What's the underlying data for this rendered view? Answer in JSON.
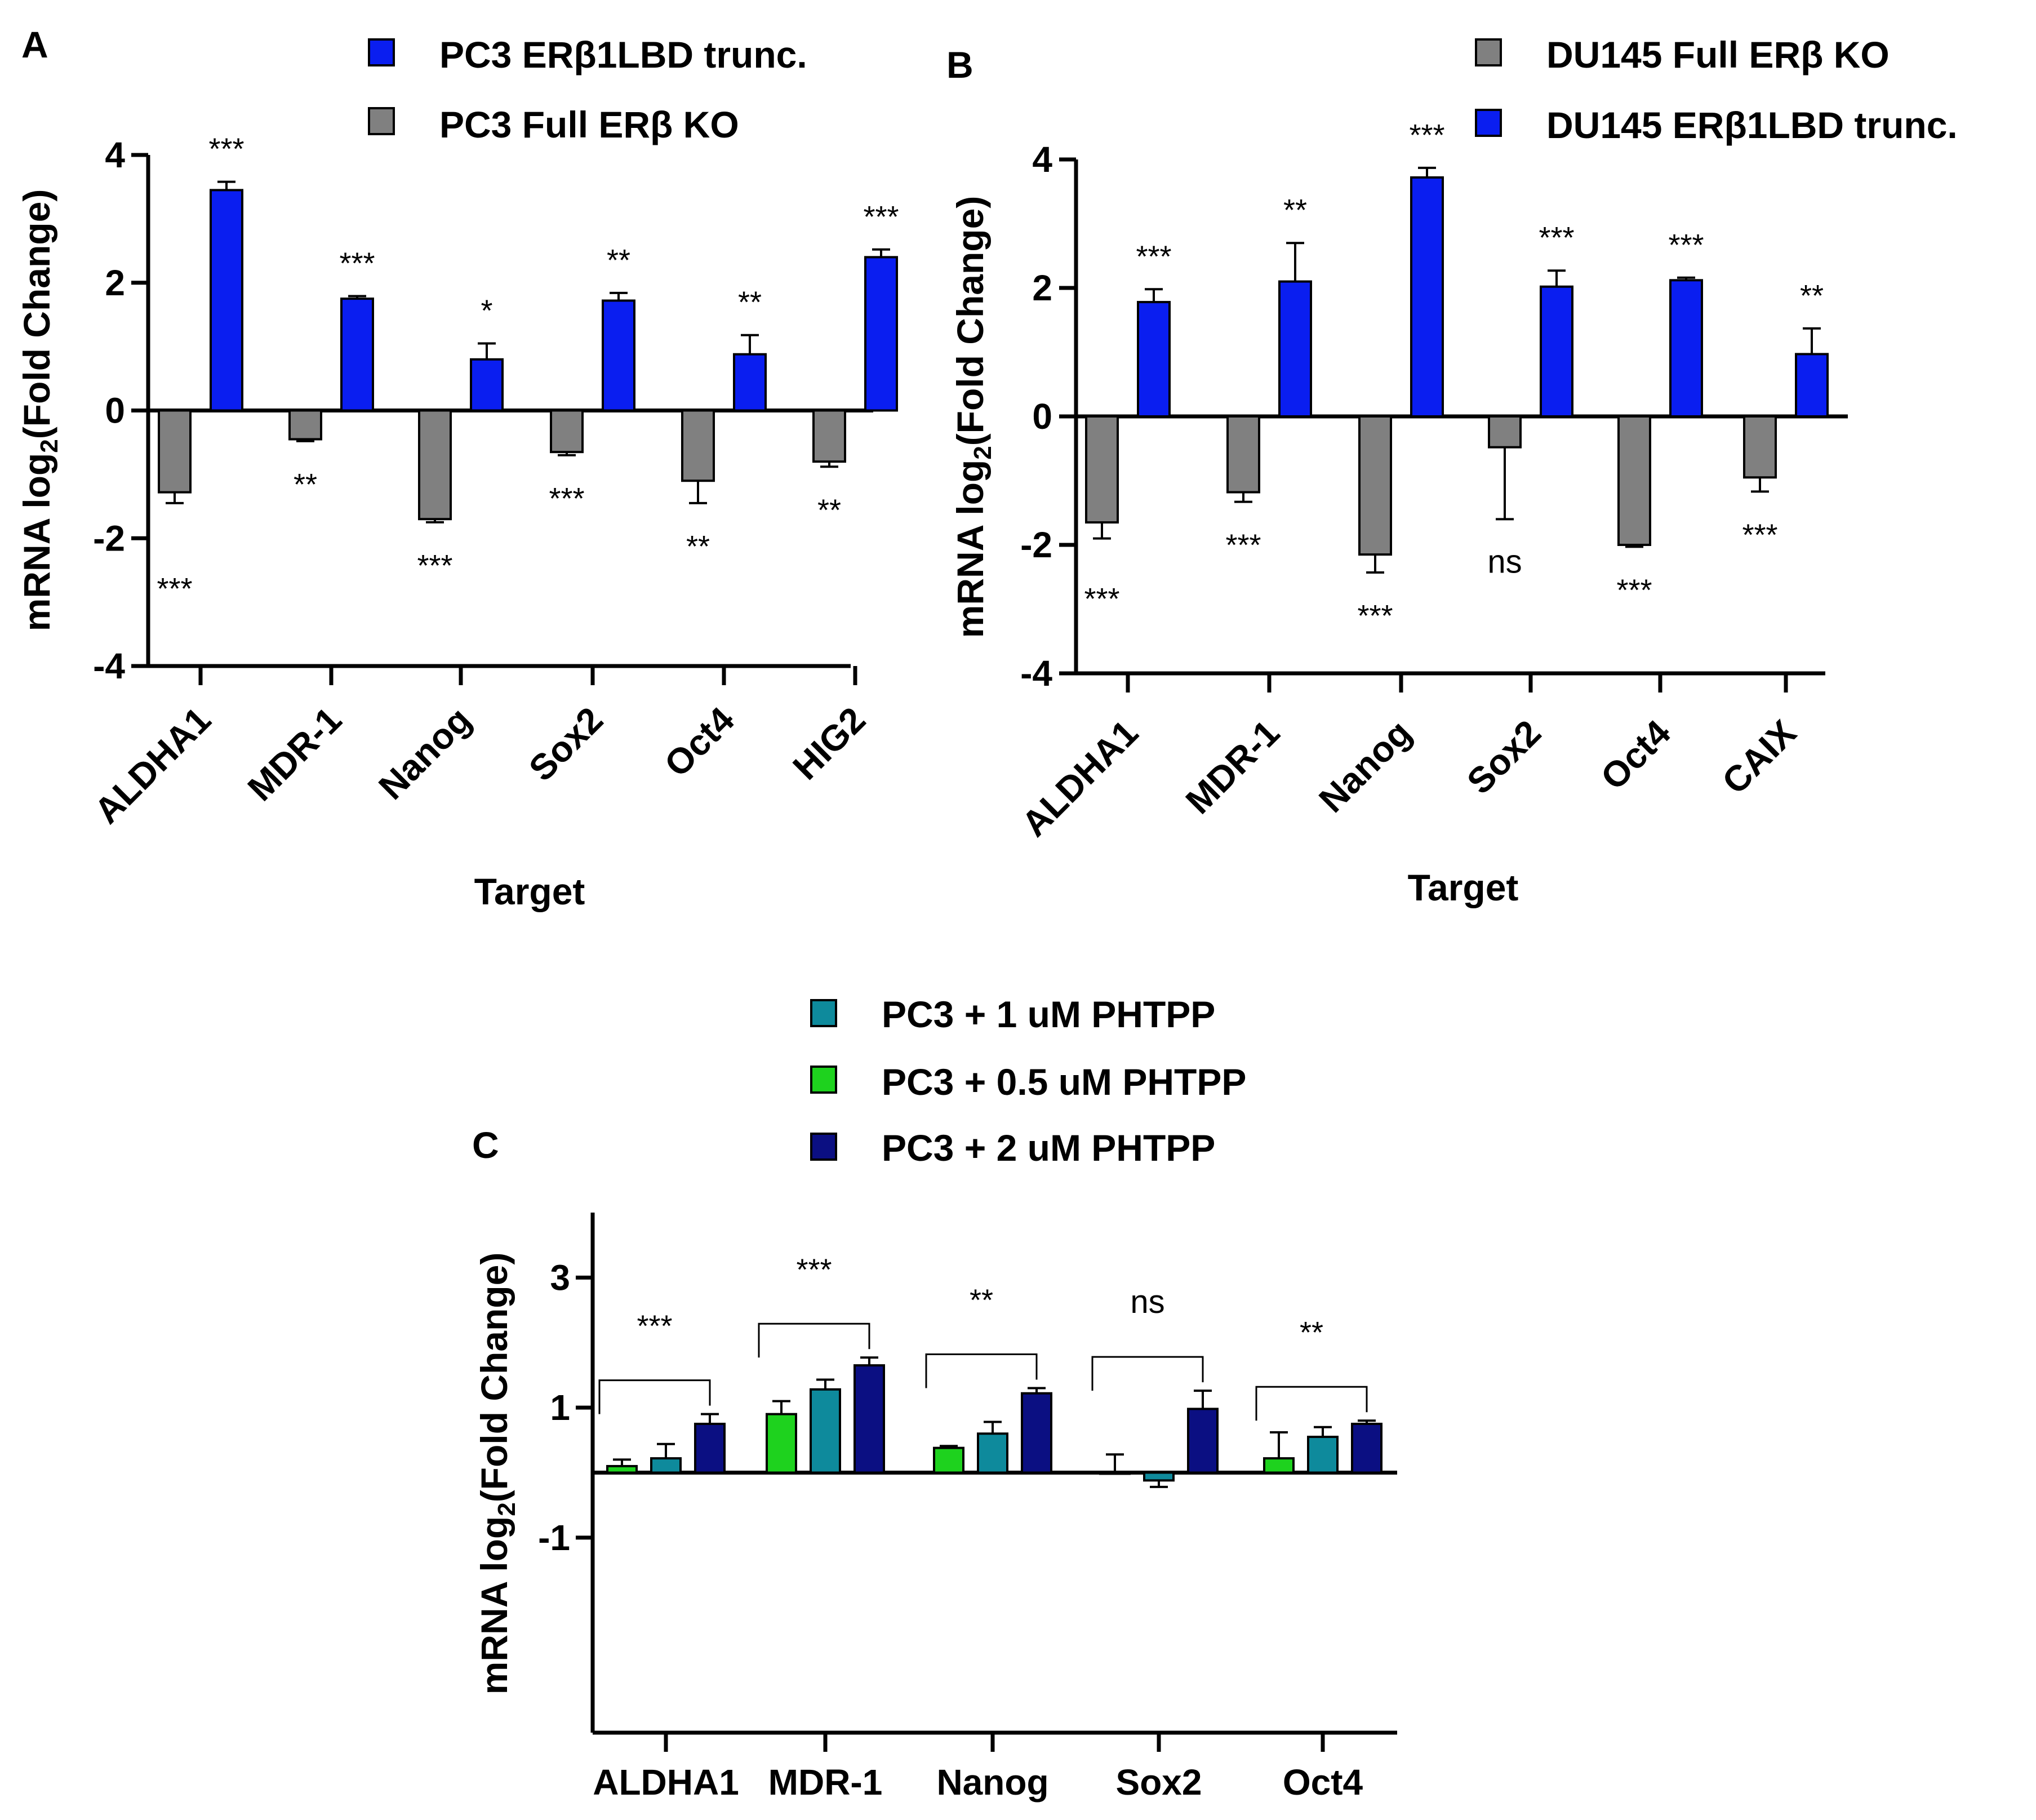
{
  "chart_data": [
    {
      "panel": "A",
      "type": "bar",
      "xlabel": "Target",
      "ylabel": "mRNA log2(Fold Change)",
      "ylim": [
        -4,
        4
      ],
      "yticks": [
        4,
        2,
        0,
        -2,
        -4
      ],
      "categories": [
        "ALDHA1",
        "MDR-1",
        "Nanog",
        "Sox2",
        "Oct4",
        "HIG2"
      ],
      "legend_position": "top",
      "series": [
        {
          "name": "PC3 ERβ1LBD trunc.",
          "color": "#0a1ef0",
          "values": [
            3.45,
            1.75,
            0.8,
            1.72,
            0.88,
            2.4
          ],
          "errors": [
            0.13,
            0.04,
            0.25,
            0.12,
            0.3,
            0.12
          ],
          "significance": [
            "***",
            "***",
            "*",
            "**",
            "**",
            "***"
          ]
        },
        {
          "name": "PC3 Full ERβ  KO",
          "color": "#808080",
          "values": [
            -1.28,
            -0.45,
            -1.7,
            -0.65,
            -1.1,
            -0.8
          ],
          "errors": [
            0.17,
            0.03,
            0.05,
            0.05,
            0.35,
            0.08
          ],
          "significance": [
            "***",
            "**",
            "***",
            "***",
            "**",
            "**"
          ]
        }
      ]
    },
    {
      "panel": "B",
      "type": "bar",
      "xlabel": "Target",
      "ylabel": "mRNA log2(Fold Change)",
      "ylim": [
        -4,
        4
      ],
      "yticks": [
        4,
        2,
        0,
        -2,
        -4
      ],
      "categories": [
        "ALDHA1",
        "MDR-1",
        "Nanog",
        "Sox2",
        "Oct4",
        "CAIX"
      ],
      "legend_position": "top-right",
      "series": [
        {
          "name": "DU145 Full ERβ  KO",
          "color": "#808080",
          "values": [
            -1.65,
            -1.18,
            -2.15,
            -0.48,
            -2.0,
            -0.95
          ],
          "errors": [
            0.25,
            0.15,
            0.28,
            1.12,
            0.03,
            0.22
          ],
          "significance": [
            "***",
            "***",
            "***",
            "ns",
            "***",
            "***"
          ]
        },
        {
          "name": "DU145 ERβ1LBD trunc.",
          "color": "#0a1ef0",
          "values": [
            1.78,
            2.1,
            3.72,
            2.02,
            2.12,
            0.97
          ],
          "errors": [
            0.2,
            0.6,
            0.15,
            0.25,
            0.04,
            0.4
          ],
          "significance": [
            "***",
            "**",
            "***",
            "***",
            "***",
            "**"
          ]
        }
      ]
    },
    {
      "panel": "C",
      "type": "bar",
      "xlabel": "",
      "ylabel": "mRNA log2(Fold Change)",
      "ylim": [
        -4,
        4
      ],
      "yticks": [
        3,
        1,
        -1
      ],
      "categories": [
        "ALDHA1",
        "MDR-1",
        "Nanog",
        "Sox2",
        "Oct4"
      ],
      "legend_position": "top",
      "legend_order": [
        "PC3 + 1 uM PHTPP",
        "PC3 + 0.5 uM PHTPP",
        "PC3 + 2 uM PHTPP"
      ],
      "series": [
        {
          "name": "PC3 + 0.5 uM PHTPP",
          "color": "#1ed21e",
          "values": [
            0.1,
            0.9,
            0.38,
            0.0,
            0.22
          ],
          "errors": [
            0.1,
            0.2,
            0.03,
            0.28,
            0.4
          ]
        },
        {
          "name": "PC3 + 1 uM PHTPP",
          "color": "#0e8a9c",
          "values": [
            0.22,
            1.28,
            0.6,
            -0.12,
            0.55
          ],
          "errors": [
            0.22,
            0.15,
            0.18,
            0.1,
            0.15
          ]
        },
        {
          "name": "PC3 + 2 uM PHTPP",
          "color": "#0b0f82",
          "values": [
            0.75,
            1.65,
            1.22,
            0.98,
            0.75
          ],
          "errors": [
            0.15,
            0.12,
            0.08,
            0.28,
            0.05
          ]
        }
      ],
      "brackets": [
        "***",
        "***",
        "**",
        "ns",
        "**"
      ]
    }
  ]
}
